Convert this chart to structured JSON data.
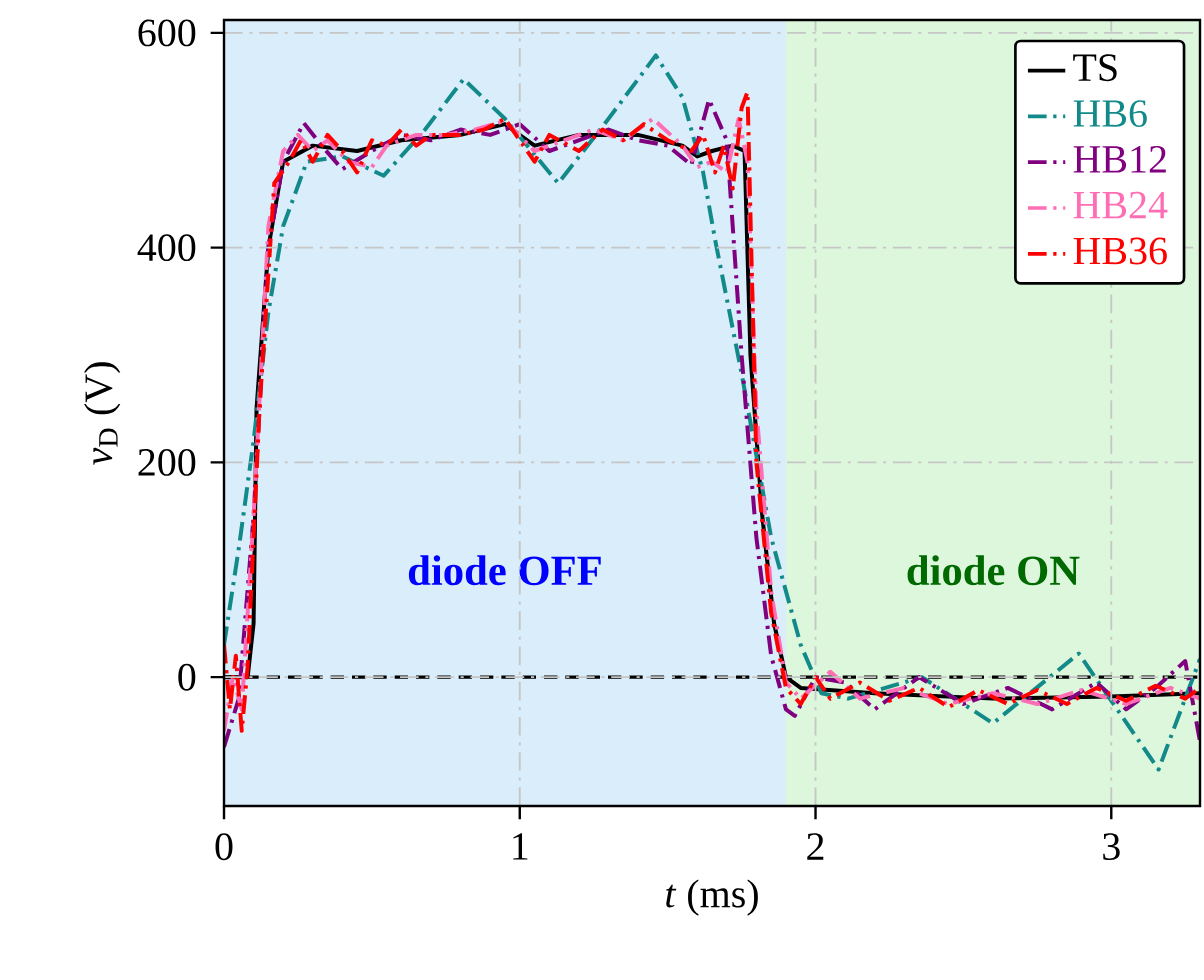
{
  "chart_data": {
    "type": "line",
    "xlabel": "*t* (ms)",
    "ylabel": "*v*$_{D}$ (V)",
    "xlim": [
      0,
      3.3
    ],
    "ylim": [
      -120,
      612
    ],
    "xticks": [
      0,
      1,
      2,
      3
    ],
    "yticks": [
      0,
      200,
      400,
      600
    ],
    "grid": true,
    "legend": "top right",
    "bands": [
      {
        "axis": "x",
        "from": 0,
        "to": 1.9,
        "label": "diode OFF",
        "color": "#d9edfa"
      },
      {
        "axis": "x",
        "from": 1.9,
        "to": 3.3,
        "label": "diode ON",
        "color": "#ddf7dd"
      }
    ],
    "ref_lines": [
      {
        "axis": "y",
        "value": 0,
        "color": "#000000",
        "line_style": "dashed"
      }
    ],
    "series": [
      {
        "name": "TS",
        "color": "#000000",
        "line_style": "solid",
        "x": [
          0,
          0.08,
          0.1,
          0.11,
          0.15,
          0.2,
          0.3,
          0.45,
          0.6,
          0.8,
          0.95,
          1.05,
          1.2,
          1.4,
          1.55,
          1.6,
          1.65,
          1.72,
          1.76,
          1.78,
          1.82,
          1.86,
          1.9,
          1.95,
          2.2,
          2.6,
          3.0,
          3.3
        ],
        "values": [
          0,
          0,
          50,
          250,
          400,
          480,
          495,
          490,
          500,
          505,
          515,
          495,
          505,
          505,
          495,
          485,
          490,
          495,
          490,
          300,
          150,
          50,
          0,
          -10,
          -15,
          -20,
          -18,
          -15
        ]
      },
      {
        "name": "HB6",
        "color": "#138a8a",
        "line_style": "dashdot",
        "x": [
          0,
          0.05,
          0.1,
          0.15,
          0.2,
          0.28,
          0.4,
          0.54,
          0.68,
          0.81,
          0.95,
          1.13,
          1.3,
          1.46,
          1.55,
          1.62,
          1.66,
          1.75,
          1.85,
          1.95,
          2.02,
          2.11,
          2.36,
          2.6,
          2.89,
          3.16,
          3.3
        ],
        "values": [
          30,
          120,
          220,
          340,
          420,
          480,
          485,
          467,
          510,
          557,
          520,
          460,
          520,
          579,
          540,
          470,
          408,
          283,
          130,
          30,
          -15,
          -20,
          0,
          -43,
          22,
          -86,
          17
        ]
      },
      {
        "name": "HB12",
        "color": "#800080",
        "line_style": "dashdot",
        "x": [
          0,
          0.05,
          0.1,
          0.15,
          0.2,
          0.27,
          0.33,
          0.4,
          0.5,
          0.6,
          0.7,
          0.8,
          0.9,
          1.0,
          1.1,
          1.2,
          1.3,
          1.4,
          1.5,
          1.58,
          1.64,
          1.7,
          1.75,
          1.8,
          1.85,
          1.9,
          1.93,
          2.0,
          2.1,
          2.2,
          2.35,
          2.5,
          2.65,
          2.8,
          2.95,
          3.05,
          3.15,
          3.25,
          3.3
        ],
        "values": [
          -65,
          -20,
          150,
          400,
          480,
          516,
          495,
          473,
          490,
          505,
          500,
          510,
          505,
          515,
          490,
          500,
          510,
          500,
          495,
          477,
          538,
          500,
          300,
          130,
          20,
          -30,
          -36,
          0,
          -5,
          -30,
          0,
          -25,
          -10,
          -30,
          -5,
          -30,
          -10,
          15,
          -60
        ]
      },
      {
        "name": "HB24",
        "color": "#ff6eb4",
        "line_style": "dashdot",
        "x": [
          0,
          0.03,
          0.06,
          0.1,
          0.15,
          0.2,
          0.25,
          0.3,
          0.35,
          0.42,
          0.5,
          0.55,
          0.65,
          0.75,
          0.85,
          0.95,
          1.05,
          1.15,
          1.25,
          1.35,
          1.45,
          1.55,
          1.6,
          1.65,
          1.7,
          1.74,
          1.77,
          1.8,
          1.85,
          1.9,
          1.95,
          2.05,
          2.15,
          2.3,
          2.45,
          2.6,
          2.75,
          2.9,
          3.05,
          3.2,
          3.3
        ],
        "values": [
          -50,
          0,
          -30,
          150,
          420,
          490,
          505,
          490,
          500,
          480,
          475,
          495,
          505,
          505,
          510,
          518,
          490,
          500,
          510,
          500,
          520,
          495,
          475,
          480,
          470,
          520,
          480,
          250,
          80,
          -5,
          -20,
          5,
          -20,
          -10,
          -25,
          -15,
          -25,
          -12,
          -25,
          -10,
          -20
        ]
      },
      {
        "name": "HB36",
        "color": "#ff0000",
        "line_style": "dashdot",
        "x": [
          0,
          0.02,
          0.04,
          0.06,
          0.08,
          0.12,
          0.17,
          0.22,
          0.26,
          0.3,
          0.35,
          0.4,
          0.45,
          0.5,
          0.55,
          0.6,
          0.65,
          0.7,
          0.8,
          0.88,
          0.95,
          1.0,
          1.05,
          1.1,
          1.2,
          1.28,
          1.35,
          1.42,
          1.5,
          1.58,
          1.62,
          1.66,
          1.69,
          1.72,
          1.75,
          1.77,
          1.8,
          1.85,
          1.9,
          1.95,
          2.0,
          2.05,
          2.15,
          2.25,
          2.35,
          2.45,
          2.55,
          2.65,
          2.75,
          2.85,
          2.95,
          3.05,
          3.15,
          3.25,
          3.3
        ],
        "values": [
          30,
          -30,
          20,
          -50,
          10,
          250,
          460,
          480,
          500,
          480,
          505,
          490,
          470,
          500,
          495,
          510,
          495,
          505,
          505,
          510,
          520,
          500,
          480,
          505,
          490,
          510,
          500,
          515,
          500,
          490,
          505,
          470,
          495,
          455,
          530,
          545,
          200,
          60,
          -10,
          -25,
          0,
          -20,
          -5,
          -22,
          -10,
          -28,
          -12,
          -25,
          -12,
          -25,
          -10,
          -22,
          -8,
          -20,
          -10
        ]
      }
    ]
  }
}
